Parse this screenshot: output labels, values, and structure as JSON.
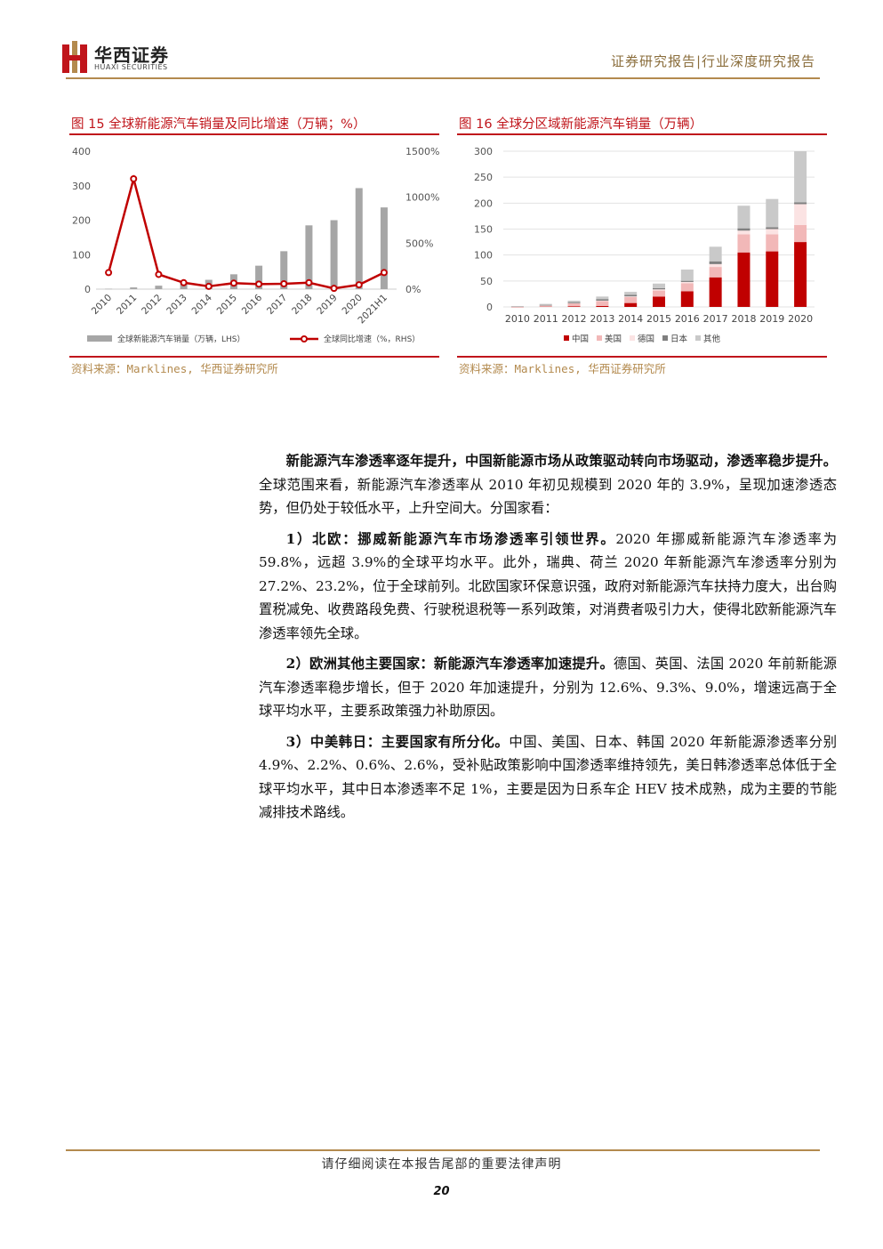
{
  "header": {
    "logo_cn": "华西证券",
    "logo_en": "HUAXI SECURITIES",
    "report_type": "证券研究报告|行业深度研究报告"
  },
  "figures": {
    "fig15": {
      "title": "图 15    全球新能源汽车销量及同比增速（万辆；%）",
      "source": "资料来源：Marklines, 华西证券研究所",
      "legend_bar": "全球新能源汽车销量（万辆，LHS）",
      "legend_line": "全球同比增速（%，RHS）"
    },
    "fig16": {
      "title": "图 16    全球分区域新能源汽车销量（万辆）",
      "source": "资料来源：Marklines, 华西证券研究所"
    }
  },
  "chart_data": [
    {
      "type": "bar",
      "categories": [
        "2010",
        "2011",
        "2012",
        "2013",
        "2014",
        "2015",
        "2016",
        "2017",
        "2018",
        "2019",
        "2020",
        "2021H1"
      ],
      "series": [
        {
          "name": "全球新能源汽车销量（万辆，LHS）",
          "type": "bar",
          "axis": "left",
          "values": [
            1,
            5,
            10,
            19,
            27,
            43,
            68,
            110,
            185,
            200,
            293,
            237
          ]
        },
        {
          "name": "全球同比增速（%，RHS）",
          "type": "line",
          "axis": "right",
          "values": [
            180,
            1200,
            160,
            70,
            30,
            65,
            55,
            58,
            70,
            8,
            47,
            180
          ]
        }
      ],
      "ylim_left": [
        0,
        400
      ],
      "yticks_left": [
        0,
        100,
        200,
        300,
        400
      ],
      "ylim_right": [
        0,
        1500
      ],
      "yticks_right": [
        "0%",
        "500%",
        "1000%",
        "1500%"
      ],
      "colors": {
        "bar": "#a6a6a6",
        "line": "#c00000"
      },
      "legend": "bottom",
      "grid": false
    },
    {
      "type": "bar",
      "stacked": true,
      "categories": [
        "2010",
        "2011",
        "2012",
        "2013",
        "2014",
        "2015",
        "2016",
        "2017",
        "2018",
        "2019",
        "2020"
      ],
      "series": [
        {
          "name": "中国",
          "values": [
            0.1,
            0.5,
            1.3,
            1.8,
            7.5,
            20,
            30,
            57,
            105,
            107,
            125
          ]
        },
        {
          "name": "美国",
          "values": [
            0.3,
            2,
            5.5,
            9.5,
            11.5,
            11.5,
            15.5,
            20,
            35,
            33,
            33
          ]
        },
        {
          "name": "德国",
          "values": [
            0.1,
            0.2,
            0.4,
            0.8,
            1.3,
            2.3,
            2.6,
            5.5,
            7,
            10,
            40
          ]
        },
        {
          "name": "日本",
          "values": [
            0.2,
            1.3,
            2,
            3,
            3,
            2.5,
            2.2,
            5.4,
            4.5,
            3.5,
            3.5
          ]
        },
        {
          "name": "其他",
          "values": [
            0.8,
            1.8,
            2.8,
            4.9,
            5.7,
            8.7,
            21.7,
            28.1,
            43.5,
            54.5,
            98.5
          ]
        }
      ],
      "ylim": [
        0,
        300
      ],
      "yticks": [
        0,
        50,
        100,
        150,
        200,
        250,
        300
      ],
      "colors": {
        "中国": "#c00000",
        "美国": "#f2b8b8",
        "德国": "#fbe3e3",
        "日本": "#7f7f7f",
        "其他": "#c9c9c9"
      },
      "legend": "bottom",
      "grid": true
    }
  ],
  "body": {
    "p1_bold": "新能源汽车渗透率逐年提升，中国新能源市场从政策驱动转向市场驱动，渗透率稳步提升。",
    "p1_text": "全球范围来看，新能源汽车渗透率从 2010 年初见规模到 2020 年的 3.9%，呈现加速渗透态势，但仍处于较低水平，上升空间大。分国家看：",
    "p2_bold": "1）北欧：挪威新能源汽车市场渗透率引领世界。",
    "p2_text": "2020 年挪威新能源汽车渗透率为 59.8%，远超 3.9%的全球平均水平。此外，瑞典、荷兰 2020 年新能源汽车渗透率分别为 27.2%、23.2%，位于全球前列。北欧国家环保意识强，政府对新能源汽车扶持力度大，出台购置税减免、收费路段免费、行驶税退税等一系列政策，对消费者吸引力大，使得北欧新能源汽车渗透率领先全球。",
    "p3_bold": "2）欧洲其他主要国家：新能源汽车渗透率加速提升。",
    "p3_text": "德国、英国、法国 2020 年前新能源汽车渗透率稳步增长，但于 2020 年加速提升，分别为 12.6%、9.3%、9.0%，增速远高于全球平均水平，主要系政策强力补助原因。",
    "p4_bold": "3）中美韩日：主要国家有所分化。",
    "p4_text": "中国、美国、日本、韩国 2020 年新能源渗透率分别 4.9%、2.2%、0.6%、2.6%，受补贴政策影响中国渗透率维持领先，美日韩渗透率总体低于全球平均水平，其中日本渗透率不足 1%，主要是因为日系车企 HEV 技术成熟，成为主要的节能减排技术路线。"
  },
  "footer": {
    "disclaimer": "请仔细阅读在本报告尾部的重要法律声明",
    "page_number": "20"
  }
}
